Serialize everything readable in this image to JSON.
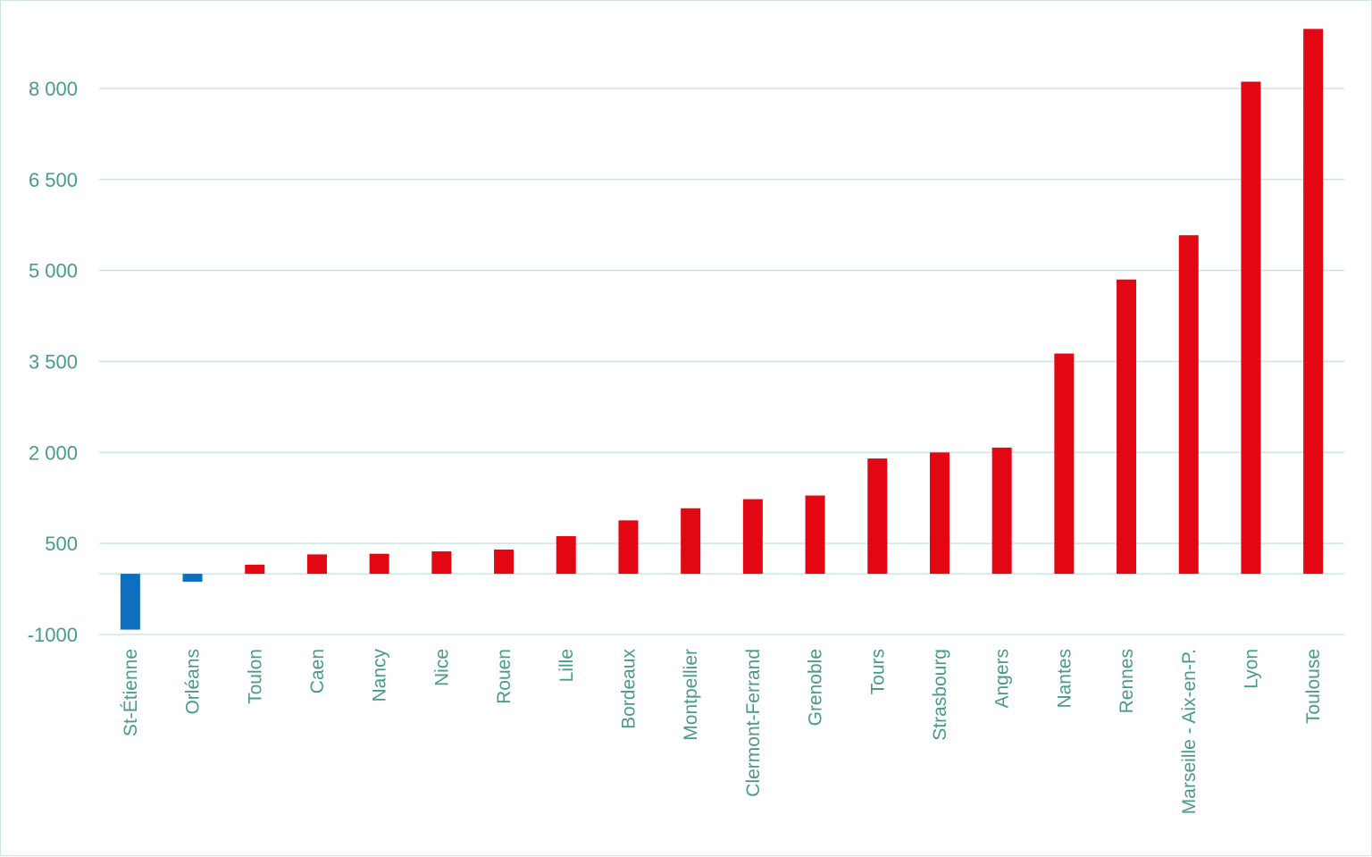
{
  "colors": {
    "positive_bar": "#e30613",
    "negative_bar": "#0d6fbd",
    "gridline": "#cde6e1",
    "axis_text": "#4a9a8b"
  },
  "chart_data": {
    "type": "bar",
    "title": "",
    "xlabel": "",
    "ylabel": "",
    "ylim": [
      -1000,
      9000
    ],
    "yticks": [
      -1000,
      500,
      2000,
      3500,
      5000,
      6500,
      8000
    ],
    "ytick_labels": [
      "-1000",
      "500",
      "2 000",
      "3 500",
      "5 000",
      "6 500",
      "8 000"
    ],
    "grid": true,
    "legend": "none",
    "categories": [
      "St-Étienne",
      "Orléans",
      "Toulon",
      "Caen",
      "Nancy",
      "Nice",
      "Rouen",
      "Lille",
      "Bordeaux",
      "Montpellier",
      "Clermont-Ferrand",
      "Grenoble",
      "Tours",
      "Strasbourg",
      "Angers",
      "Nantes",
      "Rennes",
      "Marseille - Aix-en-P.",
      "Lyon",
      "Toulouse"
    ],
    "values": [
      -920,
      -130,
      150,
      320,
      330,
      370,
      400,
      620,
      880,
      1080,
      1230,
      1290,
      1900,
      2000,
      2080,
      3630,
      4850,
      5580,
      8110,
      8980
    ]
  }
}
